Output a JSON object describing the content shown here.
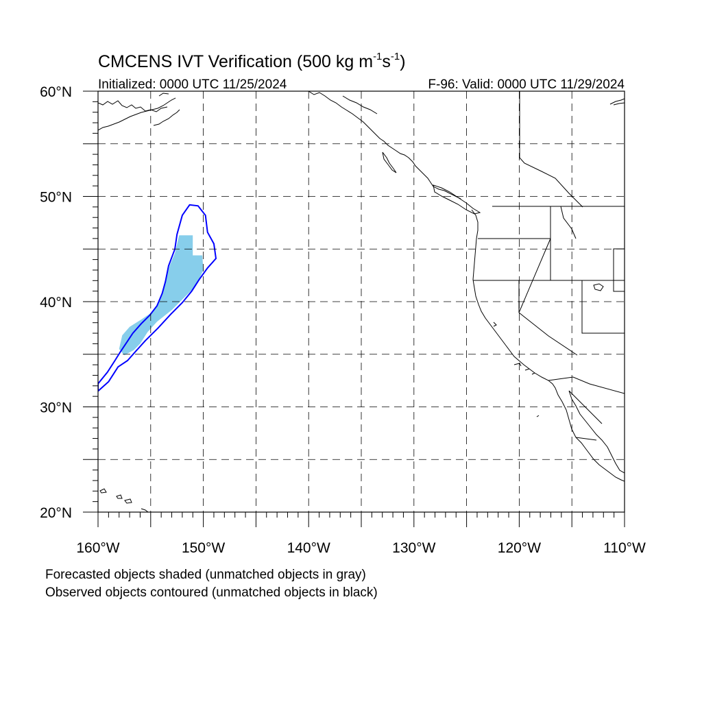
{
  "title": {
    "main": "CMCENS IVT Verification (500 kg m",
    "sup1": "-1",
    "mid": "s",
    "sup2": "-1",
    "close": ")"
  },
  "initialized": "Initialized: 0000 UTC 11/25/2024",
  "valid": "F-96: Valid: 0000 UTC 11/29/2024",
  "lat_labels": [
    {
      "value": 60,
      "text": "60°N"
    },
    {
      "value": 50,
      "text": "50°N"
    },
    {
      "value": 40,
      "text": "40°N"
    },
    {
      "value": 30,
      "text": "30°N"
    },
    {
      "value": 20,
      "text": "20°N"
    }
  ],
  "lon_labels": [
    {
      "value": -160,
      "text": "160°W"
    },
    {
      "value": -150,
      "text": "150°W"
    },
    {
      "value": -140,
      "text": "140°W"
    },
    {
      "value": -130,
      "text": "130°W"
    },
    {
      "value": -120,
      "text": "120°W"
    },
    {
      "value": -110,
      "text": "110°W"
    }
  ],
  "map": {
    "lon_range": [
      -160,
      -110
    ],
    "lat_range": [
      20,
      60
    ],
    "grid_lons": [
      -155,
      -150,
      -145,
      -140,
      -135,
      -130,
      -125,
      -120,
      -115
    ],
    "grid_lats": [
      25,
      30,
      35,
      40,
      45,
      50,
      55
    ],
    "grid_style": "dashed",
    "forecast_color": "#87ceeb",
    "observed_color": "#0000ff",
    "coast_color": "#000000"
  },
  "forecast_object": {
    "status": "matched",
    "lonlat": [
      [
        -152.3,
        46.3
      ],
      [
        -151.0,
        46.3
      ],
      [
        -151.0,
        44.4
      ],
      [
        -150.1,
        44.4
      ],
      [
        -150.0,
        43.0
      ],
      [
        -150.7,
        41.5
      ],
      [
        -151.6,
        40.6
      ],
      [
        -153.0,
        39.2
      ],
      [
        -154.4,
        38.1
      ],
      [
        -155.3,
        37.1
      ],
      [
        -156.0,
        36.0
      ],
      [
        -156.6,
        35.4
      ],
      [
        -157.5,
        34.9
      ],
      [
        -158.0,
        35.5
      ],
      [
        -157.7,
        36.8
      ],
      [
        -157.0,
        37.6
      ],
      [
        -155.9,
        38.3
      ],
      [
        -154.7,
        39.1
      ],
      [
        -154.2,
        40.1
      ],
      [
        -153.7,
        41.6
      ],
      [
        -153.2,
        43.4
      ],
      [
        -152.7,
        44.6
      ]
    ]
  },
  "observed_object": {
    "status": "matched",
    "lonlat": [
      [
        -160.0,
        31.5
      ],
      [
        -160.0,
        32.2
      ],
      [
        -159.1,
        33.3
      ],
      [
        -158.4,
        34.4
      ],
      [
        -157.9,
        35.2
      ],
      [
        -157.3,
        36.1
      ],
      [
        -156.7,
        37.0
      ],
      [
        -155.9,
        37.9
      ],
      [
        -155.1,
        38.7
      ],
      [
        -154.4,
        39.6
      ],
      [
        -153.9,
        40.8
      ],
      [
        -153.6,
        41.9
      ],
      [
        -153.3,
        43.4
      ],
      [
        -152.7,
        45.0
      ],
      [
        -152.5,
        46.4
      ],
      [
        -152.0,
        48.2
      ],
      [
        -151.3,
        49.2
      ],
      [
        -150.5,
        49.1
      ],
      [
        -149.8,
        48.2
      ],
      [
        -149.6,
        46.6
      ],
      [
        -149.0,
        45.5
      ],
      [
        -148.8,
        44.1
      ],
      [
        -149.6,
        43.2
      ],
      [
        -150.4,
        42.1
      ],
      [
        -151.1,
        41.0
      ],
      [
        -152.0,
        39.9
      ],
      [
        -153.1,
        38.8
      ],
      [
        -154.3,
        37.5
      ],
      [
        -155.5,
        36.3
      ],
      [
        -156.4,
        35.3
      ],
      [
        -157.2,
        34.4
      ],
      [
        -158.1,
        33.8
      ],
      [
        -159.0,
        32.4
      ]
    ]
  },
  "legend": {
    "line1": "Forecasted objects shaded (unmatched objects in gray)",
    "line2": "Observed objects contoured (unmatched objects in black)"
  }
}
